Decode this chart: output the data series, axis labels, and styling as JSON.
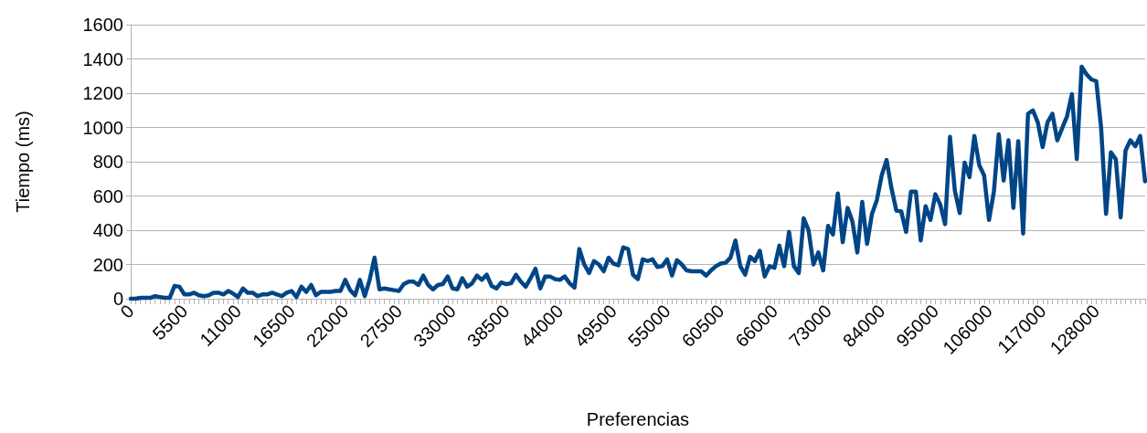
{
  "chart_data": {
    "type": "line",
    "xlabel": "Preferencias",
    "ylabel": "Tiempo (ms)",
    "categories": [
      "0",
      null,
      null,
      null,
      null,
      null,
      null,
      null,
      null,
      null,
      null,
      "5500",
      null,
      null,
      null,
      null,
      null,
      null,
      null,
      null,
      null,
      null,
      "11000",
      null,
      null,
      null,
      null,
      null,
      null,
      null,
      null,
      null,
      null,
      "16500",
      null,
      null,
      null,
      null,
      null,
      null,
      null,
      null,
      null,
      null,
      "22000",
      null,
      null,
      null,
      null,
      null,
      null,
      null,
      null,
      null,
      null,
      "27500",
      null,
      null,
      null,
      null,
      null,
      null,
      null,
      null,
      null,
      null,
      "33000",
      null,
      null,
      null,
      null,
      null,
      null,
      null,
      null,
      null,
      null,
      "38500",
      null,
      null,
      null,
      null,
      null,
      null,
      null,
      null,
      null,
      null,
      "44000",
      null,
      null,
      null,
      null,
      null,
      null,
      null,
      null,
      null,
      null,
      "49500",
      null,
      null,
      null,
      null,
      null,
      null,
      null,
      null,
      null,
      null,
      "55000",
      null,
      null,
      null,
      null,
      null,
      null,
      null,
      null,
      null,
      null,
      "60500",
      null,
      null,
      null,
      null,
      null,
      null,
      null,
      null,
      null,
      null,
      "66000",
      null,
      null,
      null,
      null,
      null,
      null,
      null,
      null,
      null,
      null,
      "73000",
      null,
      null,
      null,
      null,
      null,
      null,
      null,
      null,
      null,
      null,
      "84000",
      null,
      null,
      null,
      null,
      null,
      null,
      null,
      null,
      null,
      null,
      "95000",
      null,
      null,
      null,
      null,
      null,
      null,
      null,
      null,
      null,
      null,
      "106000",
      null,
      null,
      null,
      null,
      null,
      null,
      null,
      null,
      null,
      null,
      "117000",
      null,
      null,
      null,
      null,
      null,
      null,
      null,
      null,
      null,
      null,
      "128000",
      null,
      null,
      null,
      null,
      null,
      null,
      null,
      null,
      null,
      null
    ],
    "series": [
      {
        "color": "#004586",
        "values": [
          0,
          0,
          5,
          5,
          5,
          15,
          10,
          5,
          5,
          75,
          70,
          25,
          25,
          35,
          20,
          15,
          20,
          35,
          35,
          25,
          45,
          30,
          10,
          60,
          35,
          35,
          15,
          25,
          25,
          35,
          25,
          15,
          35,
          45,
          10,
          70,
          40,
          80,
          20,
          40,
          40,
          40,
          45,
          45,
          110,
          50,
          20,
          110,
          15,
          110,
          240,
          55,
          60,
          55,
          50,
          45,
          85,
          100,
          100,
          80,
          135,
          80,
          55,
          80,
          85,
          130,
          60,
          55,
          120,
          70,
          90,
          135,
          110,
          140,
          75,
          60,
          95,
          85,
          90,
          140,
          100,
          70,
          120,
          175,
          60,
          130,
          130,
          115,
          110,
          130,
          90,
          65,
          290,
          200,
          150,
          220,
          200,
          160,
          240,
          205,
          195,
          300,
          290,
          140,
          115,
          230,
          220,
          230,
          185,
          190,
          230,
          135,
          225,
          200,
          165,
          160,
          160,
          160,
          135,
          165,
          190,
          205,
          210,
          240,
          340,
          190,
          140,
          245,
          220,
          280,
          130,
          190,
          180,
          310,
          190,
          390,
          190,
          150,
          470,
          400,
          200,
          270,
          165,
          425,
          375,
          615,
          330,
          530,
          450,
          270,
          565,
          320,
          495,
          575,
          720,
          810,
          645,
          515,
          510,
          390,
          625,
          625,
          340,
          540,
          460,
          610,
          550,
          435,
          945,
          630,
          500,
          795,
          710,
          950,
          780,
          720,
          460,
          625,
          960,
          690,
          925,
          530,
          920,
          380,
          1080,
          1100,
          1030,
          885,
          1030,
          1080,
          925,
          995,
          1065,
          1195,
          815,
          1355,
          1310,
          1280,
          1270,
          995,
          495,
          855,
          815,
          475,
          865,
          925,
          890,
          950,
          685
        ]
      }
    ],
    "ylim": [
      0,
      1600
    ],
    "yticks": [
      0,
      200,
      400,
      600,
      800,
      1000,
      1200,
      1400,
      1600
    ],
    "grid": "y",
    "marker": "none",
    "line_style": "solid"
  }
}
